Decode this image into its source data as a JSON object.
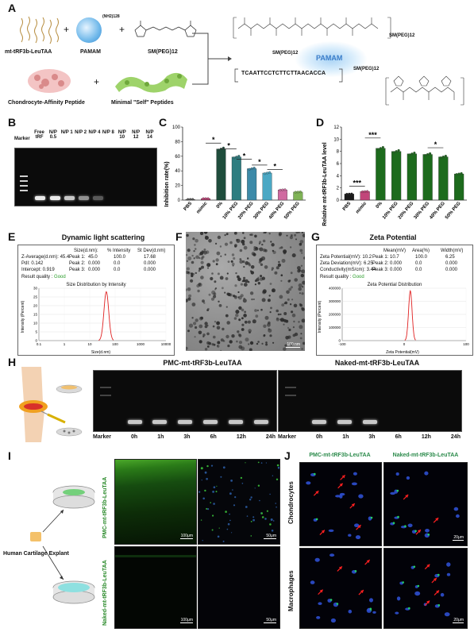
{
  "panels": {
    "A": "A",
    "B": "B",
    "C": "C",
    "D": "D",
    "E": "E",
    "F": "F",
    "G": "G",
    "H": "H",
    "I": "I",
    "J": "J"
  },
  "panelA": {
    "mt_label": "mt-tRF3b-LeuTAA",
    "pamam": "PAMAM",
    "pamam_sub": "(NH2)128",
    "sm_peg": "SM(PEG)12",
    "chondro": "Chondrocyte-Affinity Peptide",
    "minimal": "Minimal \"Self\" Peptides",
    "plus": "+",
    "sequence": "TCAATTCCTCTTCTTAACACCA",
    "pamam_center": "PAMAM",
    "smpeg_right_top": "SM(PEG)12",
    "smpeg_left": "SM(PEG)12",
    "smpeg_right_bottom": "SM(PEG)12"
  },
  "panelB": {
    "marker": "Marker",
    "lanes": [
      "Free tRF",
      "N/P 0.5",
      "N/P 1",
      "N/P 2",
      "N/P 4",
      "N/P 8",
      "N/P 10",
      "N/P 12",
      "N/P 14"
    ]
  },
  "chart_data": [
    {
      "type": "bar",
      "panel": "C",
      "ylabel": "Inhibition rate(%)",
      "categories": [
        "PBS",
        "mimic",
        "0%",
        "10% PEG",
        "20% PEG",
        "30% PEG",
        "40% PEG",
        "50% PEG"
      ],
      "values": [
        1,
        2,
        70,
        59,
        43,
        37,
        14,
        11
      ],
      "colors": [
        "#555555",
        "#c2457a",
        "#1f4d3c",
        "#2e7d80",
        "#3d8aa8",
        "#4ba8c4",
        "#d06aa0",
        "#7fb356"
      ],
      "ylim": [
        0,
        100
      ],
      "yticks": [
        0,
        20,
        40,
        60,
        80,
        100
      ],
      "significance": [
        "*",
        "*",
        "*",
        "*",
        "*"
      ]
    },
    {
      "type": "bar",
      "panel": "D",
      "ylabel": "Relative mt-tRF3b-LeuTAA level",
      "categories": [
        "PBS",
        "mimic",
        "0%",
        "10% PEG",
        "20% PEG",
        "30% PEG",
        "40% PEG",
        "50% PEG"
      ],
      "values": [
        1,
        1.4,
        8.5,
        8,
        7.6,
        7.5,
        7.1,
        4.3
      ],
      "colors": [
        "#1a1a1a",
        "#c2457a",
        "#1d6b1d",
        "#1d6b1d",
        "#1d6b1d",
        "#1d6b1d",
        "#1d6b1d",
        "#1d6b1d"
      ],
      "ylim": [
        0,
        12
      ],
      "yticks": [
        0,
        2,
        4,
        6,
        8,
        10,
        12
      ],
      "significance": [
        "***",
        "***",
        "*"
      ]
    },
    {
      "type": "line",
      "panel": "E",
      "title": "Dynamic light scattering",
      "xlabel": "Size(d.nm)",
      "ylabel": "Intensity (Percent)",
      "chart_title": "Size Distribution by Intensity",
      "xticks": [
        "0.1",
        "1",
        "10",
        "100",
        "1000",
        "10000"
      ],
      "yticks": [
        0,
        5,
        10,
        15,
        20,
        25,
        30
      ],
      "peak_x": 45,
      "peak_y": 28
    },
    {
      "type": "line",
      "panel": "G",
      "title": "Zeta Potential",
      "xlabel": "Zeta Potential(mV)",
      "ylabel": "Intensity (Percent)",
      "chart_title": "Zeta Potential Distribution",
      "xticks": [
        "-100",
        "0",
        "100"
      ],
      "yticks": [
        "0",
        "100000",
        "200000",
        "300000",
        "400000"
      ],
      "peak_x": 10,
      "peak_y": 380000
    }
  ],
  "panelE": {
    "rows": [
      [
        "Z-Average(d.nm): 45.4",
        "Peak 1:",
        "45.0",
        "100.0",
        "17.68"
      ],
      [
        "PdI: 0.142",
        "Peak 2:",
        "0.000",
        "0.0",
        "0.000"
      ],
      [
        "Intercept: 0.919",
        "Peak 3:",
        "0.000",
        "0.0",
        "0.000"
      ]
    ],
    "headers": [
      "Size(d.nm):",
      "% Intensity",
      "St Dev(d.nm)"
    ],
    "result": "Result quality :",
    "good": "Good"
  },
  "panelG": {
    "rows": [
      [
        "Zeta Potential(mV): 10.2",
        "Peak 1:",
        "10.7",
        "100.0",
        "6.25"
      ],
      [
        "Zeta Deviation(mV): 6.25",
        "Peak 2:",
        "0.000",
        "0.0",
        "0.000"
      ],
      [
        "Conductivity(mS/cm): 3.44",
        "Peak 3:",
        "0.000",
        "0.0",
        "0.000"
      ]
    ],
    "headers": [
      "Mean(mV)",
      "Area(%)",
      "Width(mV)"
    ],
    "result": "Result quality :",
    "good": "Good"
  },
  "panelF": {
    "scale": "100 nm"
  },
  "panelH": {
    "title_pmc": "PMC-mt-tRF3b-LeuTAA",
    "title_naked": "Naked-mt-tRF3b-LeuTAA",
    "marker": "Marker",
    "times": [
      "0h",
      "1h",
      "3h",
      "6h",
      "12h",
      "24h"
    ]
  },
  "panelI": {
    "explant": "Human Cartilage Explant",
    "pmc": "PMC-mt-tRF3b-LeuTAA",
    "naked": "Naked-mt-tRF3b-LeuTAA",
    "scale100": "100μm",
    "scale50": "50μm"
  },
  "panelJ": {
    "pmc": "PMC-mt-tRF3b-LeuTAA",
    "naked": "Naked-mt-tRF3b-LeuTAA",
    "chondro": "Chondrocytes",
    "macro": "Macrophages",
    "scale": "20μm"
  }
}
